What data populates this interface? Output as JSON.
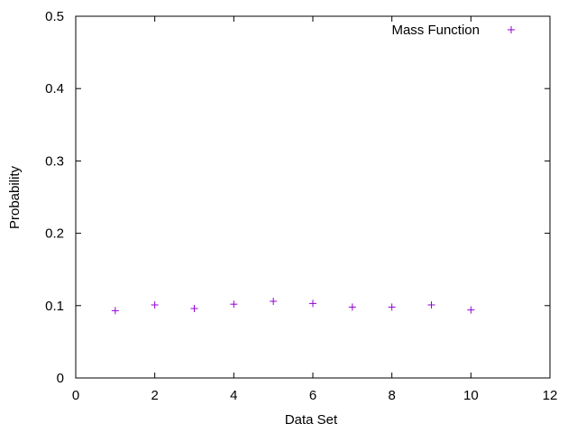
{
  "chart_data": {
    "type": "scatter",
    "xlabel": "Data Set",
    "ylabel": "Probability",
    "xlim": [
      0,
      12
    ],
    "ylim": [
      0,
      0.5
    ],
    "x_ticks": [
      0,
      2,
      4,
      6,
      8,
      10,
      12
    ],
    "y_ticks": [
      0,
      0.1,
      0.2,
      0.3,
      0.4,
      0.5
    ],
    "x_tick_labels": [
      "0",
      "2",
      "4",
      "6",
      "8",
      "10",
      "12"
    ],
    "y_tick_labels": [
      "0",
      "0.1",
      "0.2",
      "0.3",
      "0.4",
      "0.5"
    ],
    "grid": false,
    "legend_position": "top-right",
    "series": [
      {
        "name": "Mass Function",
        "color": "#9400d3",
        "marker": "plus",
        "x": [
          1,
          2,
          3,
          4,
          5,
          6,
          7,
          8,
          9,
          10
        ],
        "y": [
          0.093,
          0.101,
          0.096,
          0.102,
          0.106,
          0.103,
          0.098,
          0.098,
          0.101,
          0.094
        ]
      }
    ]
  }
}
